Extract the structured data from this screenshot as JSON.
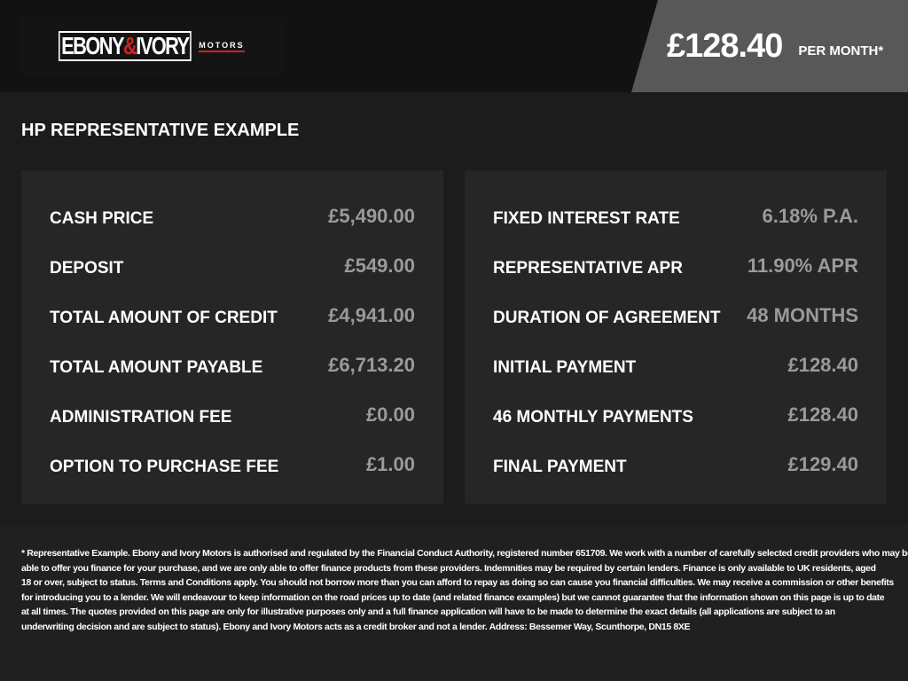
{
  "header": {
    "logo": {
      "part1": "EBONY",
      "amp": "&",
      "part2": "IVORY",
      "motors": "MOTORS"
    },
    "price": "£128.40",
    "per_month": "PER MONTH*"
  },
  "title": "HP REPRESENTATIVE EXAMPLE",
  "left": [
    {
      "label": "CASH PRICE",
      "value": "£5,490.00"
    },
    {
      "label": "DEPOSIT",
      "value": "£549.00"
    },
    {
      "label": "TOTAL AMOUNT OF CREDIT",
      "value": "£4,941.00"
    },
    {
      "label": "TOTAL AMOUNT PAYABLE",
      "value": "£6,713.20"
    },
    {
      "label": "ADMINISTRATION FEE",
      "value": "£0.00"
    },
    {
      "label": "OPTION TO PURCHASE FEE",
      "value": "£1.00"
    }
  ],
  "right": [
    {
      "label": "FIXED INTEREST RATE",
      "value": "6.18% P.A."
    },
    {
      "label": "REPRESENTATIVE APR",
      "value": "11.90% APR"
    },
    {
      "label": "DURATION OF AGREEMENT",
      "value": "48 MONTHS"
    },
    {
      "label": "INITIAL PAYMENT",
      "value": "£128.40"
    },
    {
      "label": "46 MONTHLY PAYMENTS",
      "value": "£128.40"
    },
    {
      "label": "FINAL PAYMENT",
      "value": "£129.40"
    }
  ],
  "footer": [
    "* Representative Example. Ebony and Ivory Motors is authorised and regulated by the Financial Conduct Authority, registered number 651709. We work with a number of carefully selected credit providers who may be",
    "able to offer you finance for your purchase, and we are only able to offer finance products from these providers. Indemnities may be required by certain lenders. Finance is only available to UK residents, aged",
    "18 or over, subject to status. Terms and Conditions apply. You should not borrow more than you can afford to repay as doing so can cause you financial difficulties. We may receive a commission or other benefits",
    "for introducing you to a lender. We will endeavour to keep information on the road prices up to date (and related finance examples) but we cannot guarantee that the information shown on this page is up to date",
    "at all times. The quotes provided on this page are only for illustrative purposes only and a full finance application will have to be made to determine the exact details (all applications are subject to an",
    "underwriting decision and are subject to status). Ebony and Ivory Motors acts as a credit broker and not a lender. Address: Bessemer Way, Scunthorpe, DN15 8XE"
  ]
}
